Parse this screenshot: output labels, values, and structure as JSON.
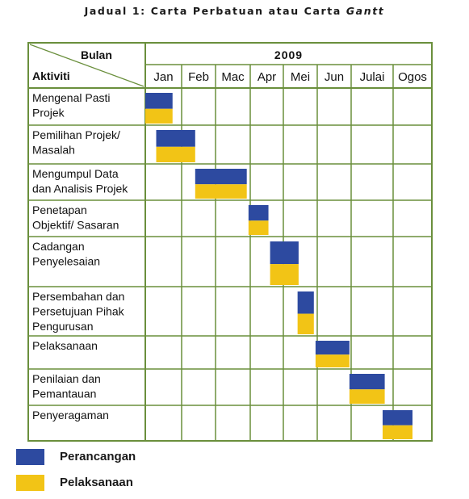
{
  "title": {
    "prefix": "Jadual 1: Carta Perbatuan atau Carta ",
    "italic": "Gantt"
  },
  "colors": {
    "grid": "#6a8f3c",
    "plan": "#2d4aa0",
    "exec": "#f2c416"
  },
  "chart_data": {
    "type": "gantt",
    "row_header": "Aktiviti",
    "column_header": "Bulan",
    "year": "2009",
    "months": [
      "Jan",
      "Feb",
      "Mac",
      "Apr",
      "Mei",
      "Jun",
      "Julai",
      "Ogos"
    ],
    "tasks": [
      {
        "lines": [
          "Mengenal Pasti",
          "Projek"
        ],
        "start": 0.0,
        "end": 0.75
      },
      {
        "lines": [
          "Pemilihan Projek/",
          "Masalah"
        ],
        "start": 0.3,
        "end": 1.4
      },
      {
        "lines": [
          "Mengumpul Data",
          "dan Analisis Projek"
        ],
        "start": 1.4,
        "end": 2.9
      },
      {
        "lines": [
          "Penetapan",
          "Objektif/ Sasaran"
        ],
        "start": 2.95,
        "end": 3.55
      },
      {
        "lines": [
          "Cadangan",
          "Penyelesaian"
        ],
        "start": 3.6,
        "end": 4.45
      },
      {
        "lines": [
          "Persembahan dan",
          "Persetujuan Pihak",
          "Pengurusan"
        ],
        "start": 4.42,
        "end": 4.9
      },
      {
        "lines": [
          "Pelaksanaan"
        ],
        "start": 4.95,
        "end": 5.95
      },
      {
        "lines": [
          "Penilaian dan",
          "Pemantauan"
        ],
        "start": 5.95,
        "end": 6.8
      },
      {
        "lines": [
          "Penyeragaman"
        ],
        "start": 6.75,
        "end": 7.5
      }
    ],
    "series": [
      {
        "name": "Perancangan",
        "color": "#2d4aa0"
      },
      {
        "name": "Pelaksanaan",
        "color": "#f2c416"
      }
    ]
  },
  "legend": [
    {
      "label": "Perancangan",
      "color": "#2d4aa0"
    },
    {
      "label": "Pelaksanaan",
      "color": "#f2c416"
    }
  ]
}
